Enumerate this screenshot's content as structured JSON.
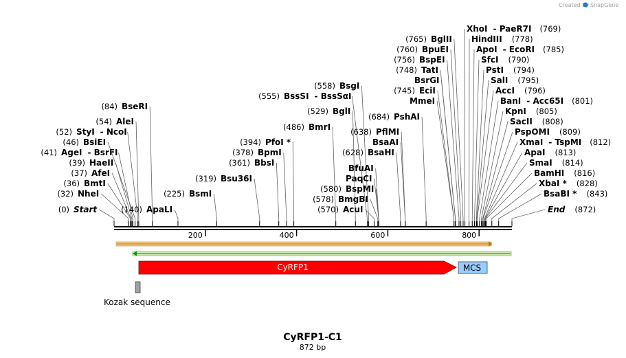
{
  "credit": {
    "created_by": "Created by",
    "brand": "SnapGene"
  },
  "plasmid": {
    "name": "CyRFP1-C1",
    "length_label": "872 bp",
    "length": 872
  },
  "ruler": {
    "ticks": [
      200,
      400,
      600,
      800
    ]
  },
  "feature_labels": {
    "cyrfp1": "CyRFP1",
    "mcs": "MCS",
    "kozak": "Kozak sequence"
  },
  "colors": {
    "cyrfp1": "#ff0000",
    "mcs": "#99ccff",
    "kozak": "#a0a0a8",
    "orange_bar": "#f5c77e",
    "green_bar": "#cfe8b0",
    "green_line": "#009900"
  },
  "sites": [
    {
      "pos": 0,
      "pos_label": "(0)",
      "name": "Start",
      "italic": true
    },
    {
      "pos": 32,
      "pos_label": "(32)",
      "name": "NheI"
    },
    {
      "pos": 36,
      "pos_label": "(36)",
      "name": "BmtI"
    },
    {
      "pos": 37,
      "pos_label": "(37)",
      "name": "AfeI"
    },
    {
      "pos": 39,
      "pos_label": "(39)",
      "name": "HaeII"
    },
    {
      "pos": 41,
      "pos_label": "(41)",
      "name": "AgeI",
      "name2": "BsrFI"
    },
    {
      "pos": 46,
      "pos_label": "(46)",
      "name": "BsiEI"
    },
    {
      "pos": 52,
      "pos_label": "(52)",
      "name": "StyI",
      "name2": "NcoI"
    },
    {
      "pos": 54,
      "pos_label": "(54)",
      "name": "AleI"
    },
    {
      "pos": 84,
      "pos_label": "(84)",
      "name": "BseRI"
    },
    {
      "pos": 140,
      "pos_label": "(140)",
      "name": "ApaLI"
    },
    {
      "pos": 225,
      "pos_label": "(225)",
      "name": "BsmI"
    },
    {
      "pos": 319,
      "pos_label": "(319)",
      "name": "Bsu36I"
    },
    {
      "pos": 361,
      "pos_label": "(361)",
      "name": "BbsI"
    },
    {
      "pos": 378,
      "pos_label": "(378)",
      "name": "BpmI"
    },
    {
      "pos": 394,
      "pos_label": "(394)",
      "name": "PfoI *"
    },
    {
      "pos": 486,
      "pos_label": "(486)",
      "name": "BmrI"
    },
    {
      "pos": 529,
      "pos_label": "(529)",
      "name": "BglI"
    },
    {
      "pos": 555,
      "pos_label": "(555)",
      "name": "BssSI",
      "name2": "BssSαI"
    },
    {
      "pos": 558,
      "pos_label": "(558)",
      "name": "BsgI"
    },
    {
      "pos": 570,
      "pos_label": "(570)",
      "name": "AcuI"
    },
    {
      "pos": 578,
      "pos_label": "(578)",
      "name": "BmgBI"
    },
    {
      "pos": 580,
      "pos_label": "(580)",
      "name": "BspMI"
    },
    {
      "pos": 580,
      "pos_label": "",
      "name": "PaqCI"
    },
    {
      "pos": 580,
      "pos_label": "",
      "name": "BfuAI"
    },
    {
      "pos": 628,
      "pos_label": "(628)",
      "name": "BsaHI"
    },
    {
      "pos": 638,
      "pos_label": "",
      "name": "BsaAI"
    },
    {
      "pos": 638,
      "pos_label": "(638)",
      "name": "PflMI"
    },
    {
      "pos": 684,
      "pos_label": "(684)",
      "name": "PshAI"
    },
    {
      "pos": 745,
      "pos_label": "",
      "name": "MmeI"
    },
    {
      "pos": 745,
      "pos_label": "(745)",
      "name": "EciI"
    },
    {
      "pos": 748,
      "pos_label": "",
      "name": "BsrGI"
    },
    {
      "pos": 748,
      "pos_label": "(748)",
      "name": "TatI"
    },
    {
      "pos": 756,
      "pos_label": "(756)",
      "name": "BspEI"
    },
    {
      "pos": 760,
      "pos_label": "(760)",
      "name": "BpuEI"
    },
    {
      "pos": 765,
      "pos_label": "(765)",
      "name": "BglII"
    },
    {
      "pos": 769,
      "pos_label": "(769)",
      "name": "XhoI",
      "name2": "PaeR7I",
      "right": true
    },
    {
      "pos": 778,
      "pos_label": "(778)",
      "name": "HindIII",
      "right": true
    },
    {
      "pos": 785,
      "pos_label": "(785)",
      "name": "ApoI",
      "name2": "EcoRI",
      "right": true
    },
    {
      "pos": 790,
      "pos_label": "(790)",
      "name": "SfcI",
      "right": true
    },
    {
      "pos": 794,
      "pos_label": "(794)",
      "name": "PstI",
      "right": true
    },
    {
      "pos": 795,
      "pos_label": "(795)",
      "name": "SalI",
      "right": true
    },
    {
      "pos": 796,
      "pos_label": "(796)",
      "name": "AccI",
      "right": true
    },
    {
      "pos": 801,
      "pos_label": "(801)",
      "name": "BanI",
      "name2": "Acc65I",
      "right": true
    },
    {
      "pos": 805,
      "pos_label": "(805)",
      "name": "KpnI",
      "right": true
    },
    {
      "pos": 808,
      "pos_label": "(808)",
      "name": "SacII",
      "right": true
    },
    {
      "pos": 809,
      "pos_label": "(809)",
      "name": "PspOMI",
      "right": true
    },
    {
      "pos": 812,
      "pos_label": "(812)",
      "name": "XmaI",
      "name2": "TspMI",
      "right": true
    },
    {
      "pos": 813,
      "pos_label": "(813)",
      "name": "ApaI",
      "right": true
    },
    {
      "pos": 814,
      "pos_label": "(814)",
      "name": "SmaI",
      "right": true
    },
    {
      "pos": 816,
      "pos_label": "(816)",
      "name": "BamHI",
      "right": true
    },
    {
      "pos": 828,
      "pos_label": "(828)",
      "name": "XbaI *",
      "right": true
    },
    {
      "pos": 843,
      "pos_label": "(843)",
      "name": "BsaBI *",
      "right": true
    },
    {
      "pos": 872,
      "pos_label": "(872)",
      "name": "End",
      "italic": true,
      "right": true
    }
  ]
}
